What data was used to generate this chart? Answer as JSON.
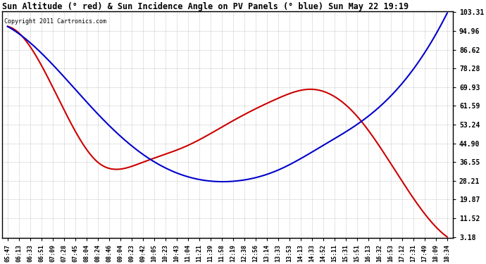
{
  "title": "Sun Altitude (° red) & Sun Incidence Angle on PV Panels (° blue) Sun May 22 19:19",
  "copyright": "Copyright 2011 Cartronics.com",
  "yticks": [
    3.18,
    11.52,
    19.87,
    28.21,
    36.55,
    44.9,
    53.24,
    61.59,
    69.93,
    78.28,
    86.62,
    94.96,
    103.31
  ],
  "xtick_labels": [
    "05:47",
    "06:13",
    "06:33",
    "06:51",
    "07:09",
    "07:28",
    "07:45",
    "08:04",
    "08:24",
    "08:46",
    "09:04",
    "09:23",
    "09:42",
    "10:05",
    "10:23",
    "10:43",
    "11:04",
    "11:21",
    "11:39",
    "11:58",
    "12:19",
    "12:38",
    "12:56",
    "13:14",
    "13:33",
    "13:53",
    "14:13",
    "14:33",
    "14:52",
    "15:11",
    "15:31",
    "15:51",
    "16:13",
    "16:32",
    "16:53",
    "17:12",
    "17:31",
    "17:49",
    "18:09",
    "18:34"
  ],
  "background_color": "#ffffff",
  "grid_color": "#aaaaaa",
  "red_line_color": "#cc0000",
  "blue_line_color": "#0000cc",
  "ymin": 3.18,
  "ymax": 103.31,
  "red_control_x": [
    0,
    4,
    8,
    12,
    16,
    20,
    24,
    27,
    31,
    35,
    39
  ],
  "red_control_y": [
    97.0,
    70.0,
    36.5,
    36.5,
    44.0,
    55.0,
    65.0,
    69.0,
    57.0,
    28.0,
    3.18
  ],
  "blue_control_x": [
    0,
    4,
    8,
    12,
    16,
    20,
    24,
    28,
    32,
    36,
    39
  ],
  "blue_control_y": [
    97.0,
    80.0,
    58.0,
    40.0,
    30.0,
    28.0,
    33.0,
    44.0,
    57.0,
    78.0,
    103.0
  ]
}
